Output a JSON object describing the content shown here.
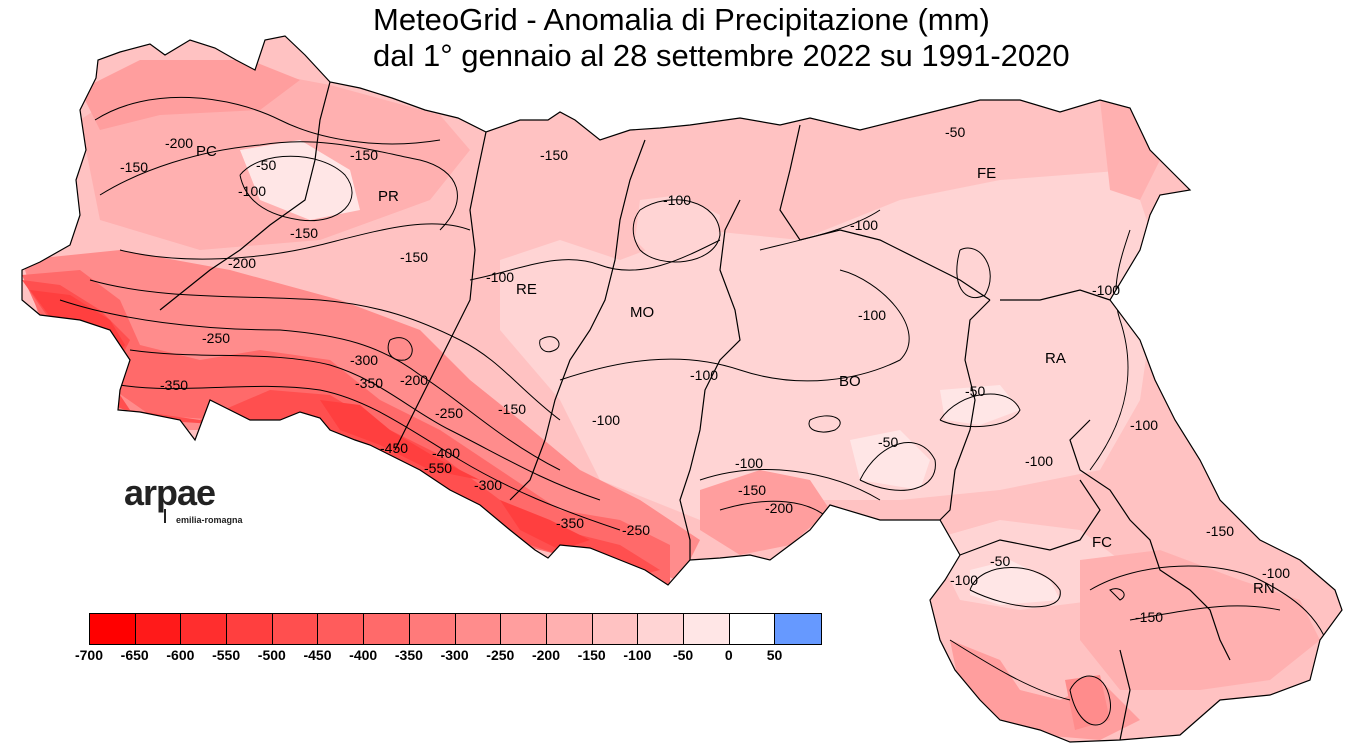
{
  "title": {
    "line1": "MeteoGrid - Anomalia di Precipitazione (mm)",
    "line2": "dal 1° gennaio al 28 settembre 2022 su 1991-2020"
  },
  "provinces": [
    {
      "code": "PC"
    },
    {
      "code": "PR"
    },
    {
      "code": "RE"
    },
    {
      "code": "MO"
    },
    {
      "code": "BO"
    },
    {
      "code": "FE"
    },
    {
      "code": "RA"
    },
    {
      "code": "FC"
    },
    {
      "code": "RN"
    }
  ],
  "contour_labels": [
    "-200",
    "-150",
    "-50",
    "-100",
    "-150",
    "-150",
    "-150",
    "-200",
    "-150",
    "-100",
    "-100",
    "-100",
    "-100",
    "-250",
    "-350",
    "-300",
    "-350",
    "-200",
    "-250",
    "-150",
    "-100",
    "-100",
    "-450",
    "-400",
    "-550",
    "-300",
    "-350",
    "-250",
    "-200",
    "-150",
    "-100",
    "-50",
    "-50",
    "-100",
    "-100",
    "-100",
    "-50",
    "-150",
    "-150",
    "-100",
    "-50",
    "-100"
  ],
  "logo": {
    "word": "arpae",
    "sub": "emilia-romagna"
  },
  "legend": {
    "colors": [
      "#ff0000",
      "#ff1a1a",
      "#ff2e2e",
      "#ff3f3f",
      "#ff4f4f",
      "#ff5c5c",
      "#ff6a6a",
      "#ff7a7a",
      "#ff8c8c",
      "#ff9e9e",
      "#ffb0b0",
      "#ffc2c2",
      "#ffd4d4",
      "#ffe6e6",
      "#ffffff",
      "#6699ff"
    ],
    "labels": [
      "-700",
      "-650",
      "-600",
      "-550",
      "-500",
      "-450",
      "-400",
      "-350",
      "-300",
      "-250",
      "-200",
      "-150",
      "-100",
      "-50",
      "0",
      "50"
    ]
  }
}
